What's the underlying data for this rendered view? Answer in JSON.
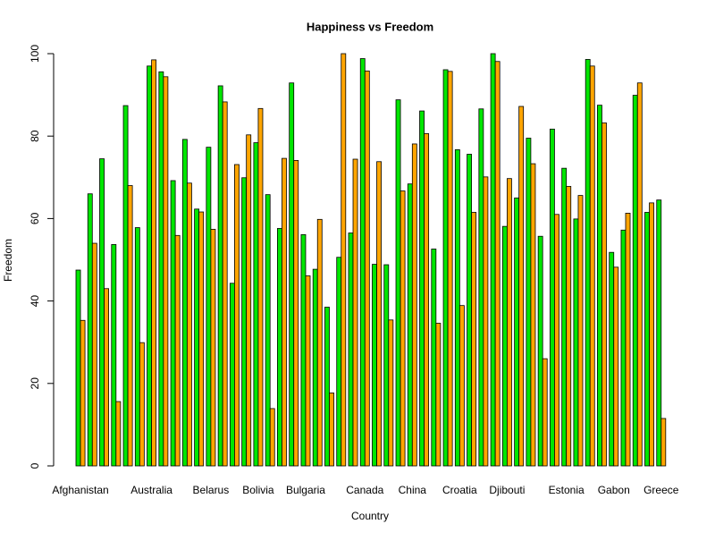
{
  "chart_data": {
    "type": "bar",
    "title": "Happiness vs Freedom",
    "x_label": "Country",
    "y_label": "Freedom",
    "categories": [
      "Afghanistan",
      null,
      null,
      null,
      null,
      null,
      "Australia",
      null,
      null,
      null,
      null,
      "Belarus",
      null,
      null,
      null,
      "Bolivia",
      null,
      null,
      null,
      "Bulgaria",
      null,
      null,
      null,
      null,
      "Canada",
      null,
      null,
      null,
      "China",
      null,
      null,
      null,
      "Croatia",
      null,
      null,
      null,
      "Djibouti",
      null,
      null,
      null,
      null,
      "Estonia",
      null,
      null,
      null,
      "Gabon",
      null,
      null,
      null,
      "Greece"
    ],
    "series": [
      {
        "color": "#00e600",
        "values": [
          47.5,
          66,
          74.5,
          53.7,
          87.4,
          57.8,
          97,
          95.6,
          69.2,
          79.2,
          62.3,
          77.3,
          92.2,
          44.3,
          69.9,
          78.4,
          65.8,
          57.6,
          92.9,
          56.1,
          47.7,
          38.5,
          50.6,
          56.5,
          98.8,
          48.9,
          48.8,
          88.8,
          68.4,
          86.1,
          52.6,
          96.1,
          76.7,
          75.6,
          86.6,
          100,
          58.1,
          65,
          79.5,
          55.7,
          81.7,
          72.2,
          59.9,
          98.6,
          87.5,
          51.8,
          57.2,
          89.9,
          61.5,
          64.5
        ]
      },
      {
        "color": "#ffa500",
        "values": [
          35.3,
          54,
          43,
          15.6,
          68,
          29.9,
          98.5,
          94.4,
          55.9,
          68.6,
          61.6,
          57.4,
          88.3,
          73.1,
          80.3,
          86.7,
          13.9,
          74.6,
          74.1,
          46.1,
          59.8,
          17.7,
          100,
          74.4,
          95.8,
          73.8,
          35.4,
          66.7,
          78.1,
          80.6,
          34.6,
          95.7,
          38.9,
          61.5,
          70.1,
          98.1,
          69.7,
          87.2,
          73.3,
          26,
          61,
          67.8,
          65.6,
          97,
          83.2,
          48.2,
          61.3,
          92.9,
          63.8,
          11.5
        ]
      }
    ],
    "ylim": [
      0,
      100
    ],
    "yticks": [
      0,
      20,
      40,
      60,
      80,
      100
    ]
  }
}
